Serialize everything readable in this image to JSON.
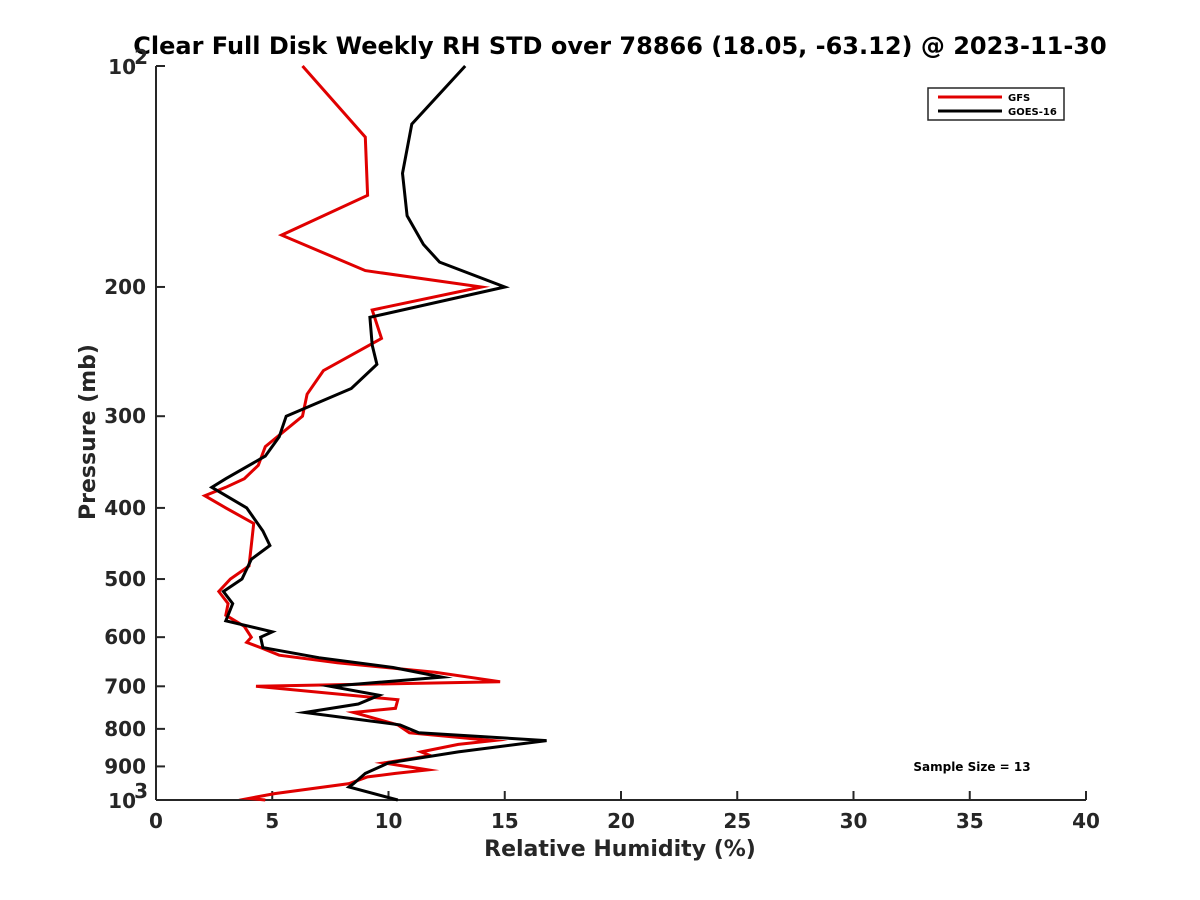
{
  "chart_data": {
    "type": "line",
    "title": "Clear Full Disk Weekly RH STD over 78866 (18.05, -63.12) @ 2023-11-30",
    "xlabel": "Relative Humidity (%)",
    "ylabel": "Pressure (mb)",
    "xlim": [
      0,
      40
    ],
    "ylim": [
      100,
      1000
    ],
    "yscale": "log",
    "y_reversed": true,
    "xticks": [
      0,
      5,
      10,
      15,
      20,
      25,
      30,
      35,
      40
    ],
    "yticks": [
      {
        "value": 100,
        "base": "10",
        "exp": "2"
      },
      {
        "value": 200,
        "label": "200"
      },
      {
        "value": 300,
        "label": "300"
      },
      {
        "value": 400,
        "label": "400"
      },
      {
        "value": 500,
        "label": "500"
      },
      {
        "value": 600,
        "label": "600"
      },
      {
        "value": 700,
        "label": "700"
      },
      {
        "value": 800,
        "label": "800"
      },
      {
        "value": 900,
        "label": "900"
      },
      {
        "value": 1000,
        "base": "10",
        "exp": "3"
      }
    ],
    "legend_position": "top-right",
    "annotation": "Sample Size = 13",
    "series": [
      {
        "name": "GFS",
        "color": "#e00000",
        "points": [
          [
            6.3,
            100
          ],
          [
            9.0,
            125
          ],
          [
            9.1,
            150
          ],
          [
            5.4,
            170
          ],
          [
            9.0,
            190
          ],
          [
            14.0,
            200
          ],
          [
            9.3,
            215
          ],
          [
            9.7,
            235
          ],
          [
            7.2,
            260
          ],
          [
            6.5,
            280
          ],
          [
            6.3,
            300
          ],
          [
            4.7,
            330
          ],
          [
            4.4,
            350
          ],
          [
            3.8,
            365
          ],
          [
            3.0,
            375
          ],
          [
            2.1,
            385
          ],
          [
            3.0,
            400
          ],
          [
            4.2,
            420
          ],
          [
            4.1,
            450
          ],
          [
            4.0,
            480
          ],
          [
            3.2,
            500
          ],
          [
            2.7,
            520
          ],
          [
            3.1,
            540
          ],
          [
            3.0,
            560
          ],
          [
            3.8,
            580
          ],
          [
            4.1,
            600
          ],
          [
            3.9,
            610
          ],
          [
            4.5,
            620
          ],
          [
            5.3,
            635
          ],
          [
            7.8,
            650
          ],
          [
            12.0,
            670
          ],
          [
            14.8,
            690
          ],
          [
            4.3,
            700
          ],
          [
            10.4,
            730
          ],
          [
            10.3,
            750
          ],
          [
            8.5,
            760
          ],
          [
            10.4,
            790
          ],
          [
            10.9,
            810
          ],
          [
            14.5,
            830
          ],
          [
            13.0,
            840
          ],
          [
            11.4,
            860
          ],
          [
            11.8,
            870
          ],
          [
            9.8,
            890
          ],
          [
            11.7,
            910
          ],
          [
            10.3,
            920
          ],
          [
            9.1,
            930
          ],
          [
            8.3,
            950
          ],
          [
            5.1,
            980
          ],
          [
            4.0,
            995
          ],
          [
            4.7,
            1000
          ]
        ]
      },
      {
        "name": "GOES-16",
        "color": "#000000",
        "points": [
          [
            13.3,
            100
          ],
          [
            11.0,
            120
          ],
          [
            10.6,
            140
          ],
          [
            10.8,
            160
          ],
          [
            11.5,
            175
          ],
          [
            12.2,
            185
          ],
          [
            15.0,
            200
          ],
          [
            9.2,
            220
          ],
          [
            9.3,
            240
          ],
          [
            9.5,
            255
          ],
          [
            8.4,
            275
          ],
          [
            5.6,
            300
          ],
          [
            5.3,
            320
          ],
          [
            4.7,
            340
          ],
          [
            3.0,
            365
          ],
          [
            2.4,
            375
          ],
          [
            3.9,
            400
          ],
          [
            4.6,
            430
          ],
          [
            4.9,
            450
          ],
          [
            4.1,
            470
          ],
          [
            3.7,
            500
          ],
          [
            2.9,
            520
          ],
          [
            3.3,
            540
          ],
          [
            3.1,
            560
          ],
          [
            3.0,
            570
          ],
          [
            5.0,
            590
          ],
          [
            4.5,
            600
          ],
          [
            4.6,
            620
          ],
          [
            7.0,
            640
          ],
          [
            10.2,
            660
          ],
          [
            12.3,
            680
          ],
          [
            7.5,
            700
          ],
          [
            9.6,
            720
          ],
          [
            8.7,
            740
          ],
          [
            6.4,
            760
          ],
          [
            10.5,
            790
          ],
          [
            11.3,
            810
          ],
          [
            16.8,
            830
          ],
          [
            13.0,
            860
          ],
          [
            10.0,
            890
          ],
          [
            9.0,
            920
          ],
          [
            8.5,
            950
          ],
          [
            8.3,
            960
          ],
          [
            10.4,
            1000
          ]
        ]
      }
    ]
  }
}
